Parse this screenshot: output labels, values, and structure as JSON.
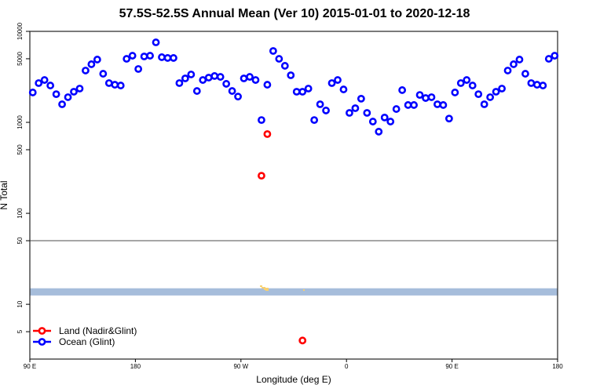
{
  "chart_data": {
    "type": "scatter",
    "title": "57.5S-52.5S Annual Mean (Ver 10)   2015-01-01 to 2020-12-18",
    "xlabel": "Longitude (deg E)",
    "ylabel": "N Total",
    "yscale": "log",
    "ylim": [
      2.5,
      10000
    ],
    "xlim_deg_east": [
      90,
      540
    ],
    "x_ticks": [
      "90 E",
      "180",
      "90 W",
      "0",
      "90 E",
      "180"
    ],
    "y_ticks": [
      "10000",
      "5000",
      "1000",
      "500",
      "100",
      "50",
      "10",
      "5"
    ],
    "y_tick_values": [
      10000,
      5000,
      1000,
      500,
      100,
      50,
      10,
      5
    ],
    "reference_line": 50,
    "map_strip": {
      "color": "#a6bddb",
      "land_color": "#f8d070",
      "range": [
        12.5,
        15
      ]
    },
    "legend": {
      "placement": "bottom-left",
      "entries": [
        "Land (Nadir&Glint)",
        "Ocean (Glint)"
      ]
    },
    "series": [
      {
        "name": "Land (Nadir&Glint)",
        "color": "#ff0000",
        "lon": [
          287.5,
          292.5,
          322.5
        ],
        "values": [
          259,
          743,
          4
        ]
      },
      {
        "name": "Ocean (Glint)",
        "color": "#0000ff",
        "lon": [
          92.5,
          97.5,
          102.5,
          107.5,
          112.5,
          117.5,
          122.5,
          127.5,
          132.5,
          137.5,
          142.5,
          147.5,
          152.5,
          157.5,
          162.5,
          167.5,
          172.5,
          177.5,
          182.5,
          187.5,
          192.5,
          197.5,
          202.5,
          207.5,
          212.5,
          217.5,
          222.5,
          227.5,
          232.5,
          237.5,
          242.5,
          247.5,
          252.5,
          257.5,
          262.5,
          267.5,
          272.5,
          277.5,
          282.5,
          287.5,
          292.5,
          297.5,
          302.5,
          307.5,
          312.5,
          317.5,
          322.5,
          327.5,
          332.5,
          337.5,
          342.5,
          347.5,
          352.5,
          357.5,
          362.5,
          367.5,
          372.5,
          377.5,
          382.5,
          387.5,
          392.5,
          397.5,
          402.5,
          407.5,
          412.5,
          417.5,
          422.5,
          427.5,
          432.5,
          437.5,
          442.5,
          447.5,
          452.5,
          457.5,
          462.5,
          467.5,
          472.5,
          477.5,
          482.5,
          487.5,
          492.5,
          497.5,
          502.5,
          507.5,
          512.5,
          517.5,
          522.5,
          527.5,
          532.5,
          537.5
        ],
        "values": [
          2130,
          2700,
          2920,
          2540,
          2040,
          1580,
          1890,
          2170,
          2350,
          3710,
          4350,
          4900,
          3420,
          2700,
          2590,
          2540,
          4990,
          5400,
          3860,
          5300,
          5400,
          7570,
          5200,
          5100,
          5100,
          2700,
          3040,
          3360,
          2210,
          2920,
          3100,
          3230,
          3160,
          2650,
          2210,
          1920,
          3040,
          3160,
          2920,
          1060,
          2590,
          6090,
          4990,
          4180,
          3290,
          2170,
          2170,
          2350,
          1060,
          1580,
          1350,
          2700,
          2920,
          2300,
          1270,
          1430,
          1820,
          1270,
          1020,
          790,
          1130,
          1020,
          1400,
          2260,
          1550,
          1550,
          2000,
          1850,
          1890,
          1580,
          1550,
          1100,
          2130,
          2700,
          2920,
          2540,
          2040,
          1580,
          1890,
          2170,
          2350,
          3710,
          4350,
          4900,
          3420,
          2700,
          2590,
          2540,
          4990,
          5400
        ]
      }
    ]
  }
}
